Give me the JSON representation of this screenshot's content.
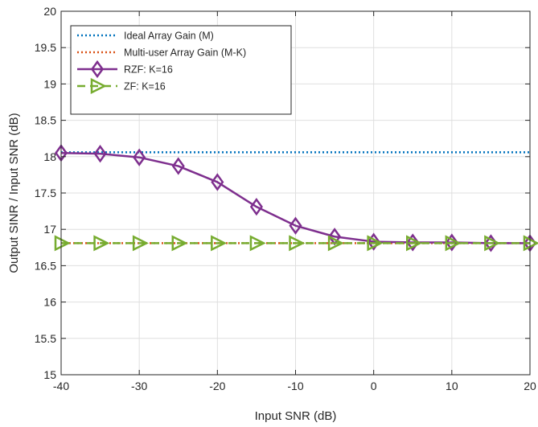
{
  "chart_data": {
    "type": "line",
    "title": "",
    "xlabel": "Input SNR (dB)",
    "ylabel": "Output SINR / Input SNR (dB)",
    "xlim": [
      -40,
      20
    ],
    "ylim": [
      15,
      20
    ],
    "xticks": [
      -40,
      -30,
      -20,
      -10,
      0,
      10,
      20
    ],
    "yticks": [
      15,
      15.5,
      16,
      16.5,
      17,
      17.5,
      18,
      18.5,
      19,
      19.5,
      20
    ],
    "grid": true,
    "legend_position": "top-left",
    "x": [
      -40,
      -35,
      -30,
      -25,
      -20,
      -15,
      -10,
      -5,
      0,
      5,
      10,
      15,
      20
    ],
    "series": [
      {
        "name": "Ideal Array Gain (M)",
        "color": "#0072BD",
        "line_style": "dotted",
        "marker": "none",
        "values": [
          18.06,
          18.06,
          18.06,
          18.06,
          18.06,
          18.06,
          18.06,
          18.06,
          18.06,
          18.06,
          18.06,
          18.06,
          18.06
        ]
      },
      {
        "name": "Multi-user Array Gain (M-K)",
        "color": "#D95319",
        "line_style": "dotted",
        "marker": "none",
        "values": [
          16.81,
          16.81,
          16.81,
          16.81,
          16.81,
          16.81,
          16.81,
          16.81,
          16.81,
          16.81,
          16.81,
          16.81,
          16.81
        ]
      },
      {
        "name": "RZF: K=16",
        "color": "#7E2F8E",
        "line_style": "solid",
        "marker": "diamond",
        "values": [
          18.05,
          18.04,
          17.99,
          17.87,
          17.65,
          17.31,
          17.05,
          16.9,
          16.83,
          16.82,
          16.82,
          16.81,
          16.81
        ]
      },
      {
        "name": "ZF: K=16",
        "color": "#77AC30",
        "line_style": "dashed",
        "marker": "triangle-right",
        "values": [
          16.81,
          16.81,
          16.81,
          16.81,
          16.81,
          16.81,
          16.81,
          16.81,
          16.81,
          16.81,
          16.81,
          16.81,
          16.81
        ]
      }
    ]
  }
}
